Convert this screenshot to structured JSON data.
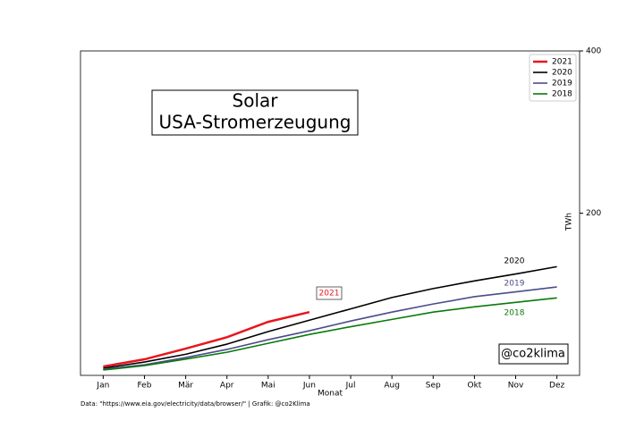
{
  "chart_data": {
    "type": "line",
    "title": "Solar",
    "subtitle": "USA-Stromerzeugung",
    "x_label": "Monat",
    "y_label": "TWh",
    "footer": "Data: \"https://www.eia.gov/electricity/data/browser/\" | Grafik: @co2Klima",
    "watermark": "@co2klima",
    "categories": [
      "Jan",
      "Feb",
      "Mär",
      "Apr",
      "Mai",
      "Jun",
      "Jul",
      "Aug",
      "Sep",
      "Okt",
      "Nov",
      "Dez"
    ],
    "series": [
      {
        "name": "2021",
        "color": "#e8161b",
        "values": [
          10.9,
          19.8,
          33,
          47,
          66,
          78,
          null,
          null,
          null,
          null,
          null,
          null
        ]
      },
      {
        "name": "2020",
        "color": "#000000",
        "values": [
          8.8,
          16.5,
          26,
          38.5,
          54,
          68,
          82,
          96,
          107,
          116.5,
          125,
          134
        ]
      },
      {
        "name": "2019",
        "color": "#4b4c8a",
        "values": [
          7.7,
          13,
          22,
          32,
          44,
          55,
          67,
          78,
          88,
          97,
          103,
          109
        ]
      },
      {
        "name": "2018",
        "color": "#0a7a0a",
        "values": [
          6.6,
          12,
          20,
          28.5,
          39.5,
          50.5,
          60,
          69,
          78,
          84.5,
          90,
          95.5
        ]
      }
    ],
    "annotations": [
      {
        "text": "2021",
        "color": "#e8161b"
      },
      {
        "text": "2020",
        "color": "#000000"
      },
      {
        "text": "2019",
        "color": "#4b4c8a"
      },
      {
        "text": "2018",
        "color": "#0a7a0a"
      }
    ],
    "ylim": [
      0,
      400
    ],
    "yticks": [
      200,
      400
    ],
    "legend": "upper right"
  }
}
